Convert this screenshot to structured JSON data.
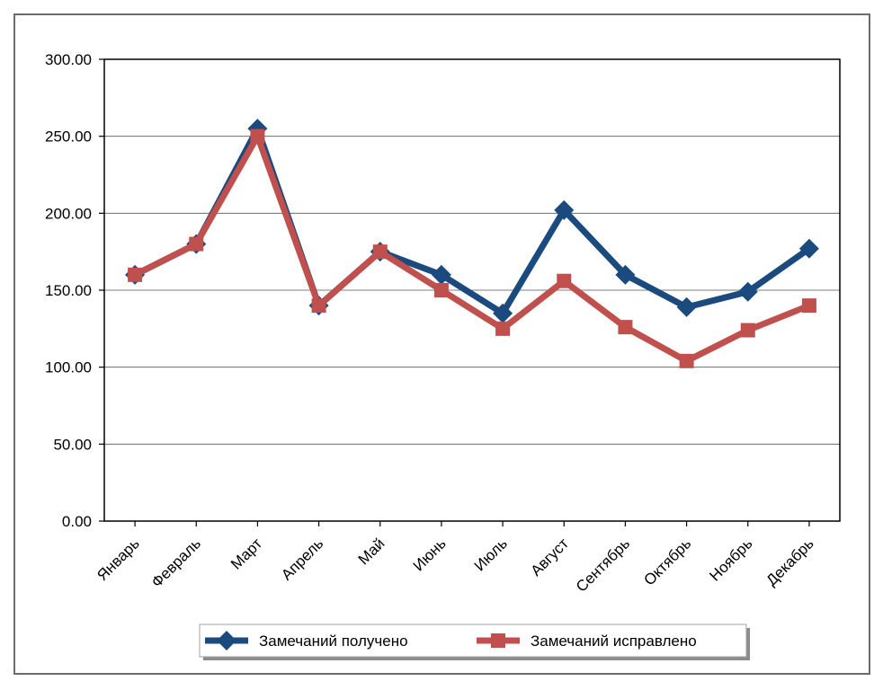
{
  "chart_data": {
    "type": "line",
    "title": "",
    "xlabel": "",
    "ylabel": "",
    "categories": [
      "Январь",
      "Февраль",
      "Март",
      "Апрель",
      "Май",
      "Июнь",
      "Июль",
      "Август",
      "Сентябрь",
      "Октябрь",
      "Ноябрь",
      "Декабрь"
    ],
    "ylim": [
      0,
      300
    ],
    "yticks": [
      "0.00",
      "50.00",
      "100.00",
      "150.00",
      "200.00",
      "250.00",
      "300.00"
    ],
    "grid": true,
    "legend_position": "bottom",
    "series": [
      {
        "name": "Замечаний получено",
        "color": "#1b4a7e",
        "marker": "diamond",
        "values": [
          160,
          180,
          255,
          140,
          175,
          160,
          135,
          202,
          160,
          139,
          149,
          177
        ]
      },
      {
        "name": "Замечаний исправлено",
        "color": "#c0504d",
        "marker": "square",
        "values": [
          160,
          180,
          250,
          140,
          175,
          150,
          125,
          156,
          126,
          104,
          124,
          140
        ]
      }
    ]
  }
}
